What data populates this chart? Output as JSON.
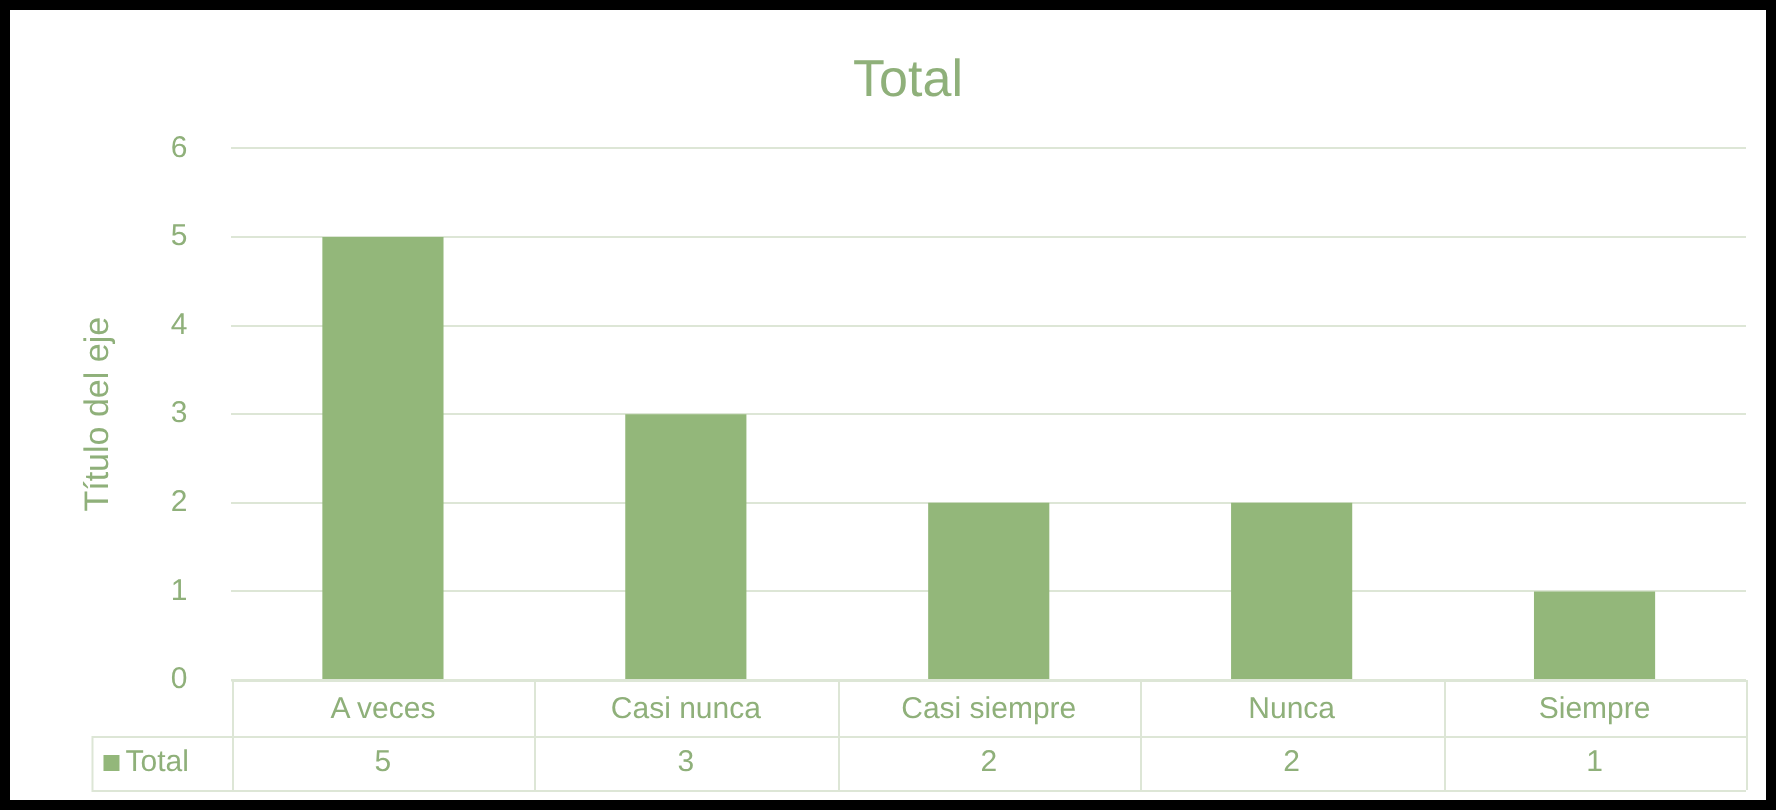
{
  "chart_data": {
    "type": "bar",
    "title": "Total",
    "ylabel": "Título del eje",
    "categories": [
      "A veces",
      "Casi nunca",
      "Casi siempre",
      "Nunca",
      "Siempre"
    ],
    "series": [
      {
        "name": "Total",
        "color": "#93b77a",
        "values": [
          5,
          3,
          2,
          2,
          1
        ]
      }
    ],
    "ylim": [
      0,
      6
    ],
    "yticks": [
      0,
      1,
      2,
      3,
      4,
      5,
      6
    ],
    "grid": "y",
    "data_labels": true
  }
}
